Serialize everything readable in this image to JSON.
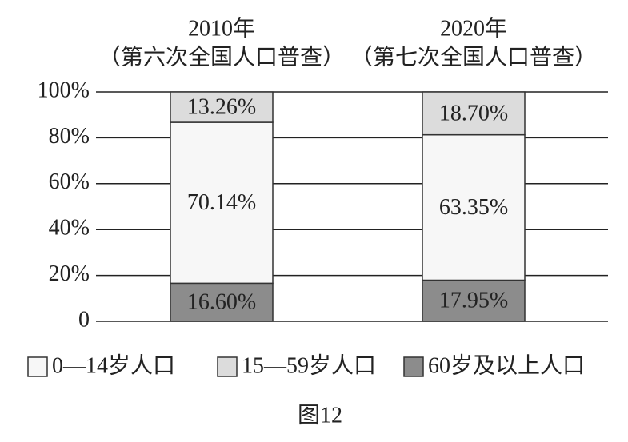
{
  "chart_data": {
    "type": "stacked_bar",
    "categories": [
      "2010年",
      "2020年"
    ],
    "category_notes": [
      "（第六次全国人口普查）",
      "（第七次全国人口普查）"
    ],
    "series": [
      {
        "name": "60岁及以上人口",
        "color": "#8c8c8c",
        "values": [
          16.6,
          17.95
        ],
        "value_labels": [
          "16.60%",
          "17.95%"
        ]
      },
      {
        "name": "0—14岁人口",
        "color": "#f7f7f7",
        "values": [
          70.14,
          63.35
        ],
        "value_labels": [
          "70.14%",
          "63.35%"
        ]
      },
      {
        "name": "15—59岁人口",
        "color": "#dcdcdc",
        "values": [
          13.26,
          18.7
        ],
        "value_labels": [
          "13.26%",
          "18.70%"
        ]
      }
    ],
    "ylim": [
      0,
      100
    ],
    "yticks": [
      0,
      {
        "value": 20,
        "label": "20%"
      },
      {
        "value": 40,
        "label": "40%"
      },
      {
        "value": 60,
        "label": "60%"
      },
      {
        "value": 80,
        "label": "80%"
      },
      {
        "value": 100,
        "label": "100%"
      }
    ],
    "grid": true,
    "caption": "图12"
  }
}
